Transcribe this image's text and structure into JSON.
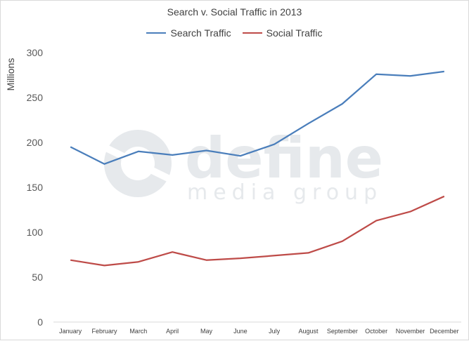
{
  "chart_data": {
    "type": "line",
    "title": "Search v. Social Traffic in 2013",
    "ylabel": "Millions",
    "xlabel": "",
    "ylim": [
      0,
      300
    ],
    "yticks": [
      0,
      50,
      100,
      150,
      200,
      250,
      300
    ],
    "grid": false,
    "legend_position": "top",
    "categories": [
      "January",
      "February",
      "March",
      "April",
      "May",
      "June",
      "July",
      "August",
      "September",
      "October",
      "November",
      "December"
    ],
    "series": [
      {
        "name": "Search Traffic",
        "color": "#4a7ebb",
        "values": [
          195,
          176,
          190,
          186,
          191,
          185,
          198,
          221,
          243,
          276,
          274,
          279
        ]
      },
      {
        "name": "Social Traffic",
        "color": "#be4b48",
        "values": [
          69,
          63,
          67,
          78,
          69,
          71,
          74,
          77,
          90,
          113,
          123,
          140
        ]
      }
    ]
  },
  "watermark": {
    "line1": "define",
    "line2": "media group",
    "color": "#e6e9ec"
  }
}
